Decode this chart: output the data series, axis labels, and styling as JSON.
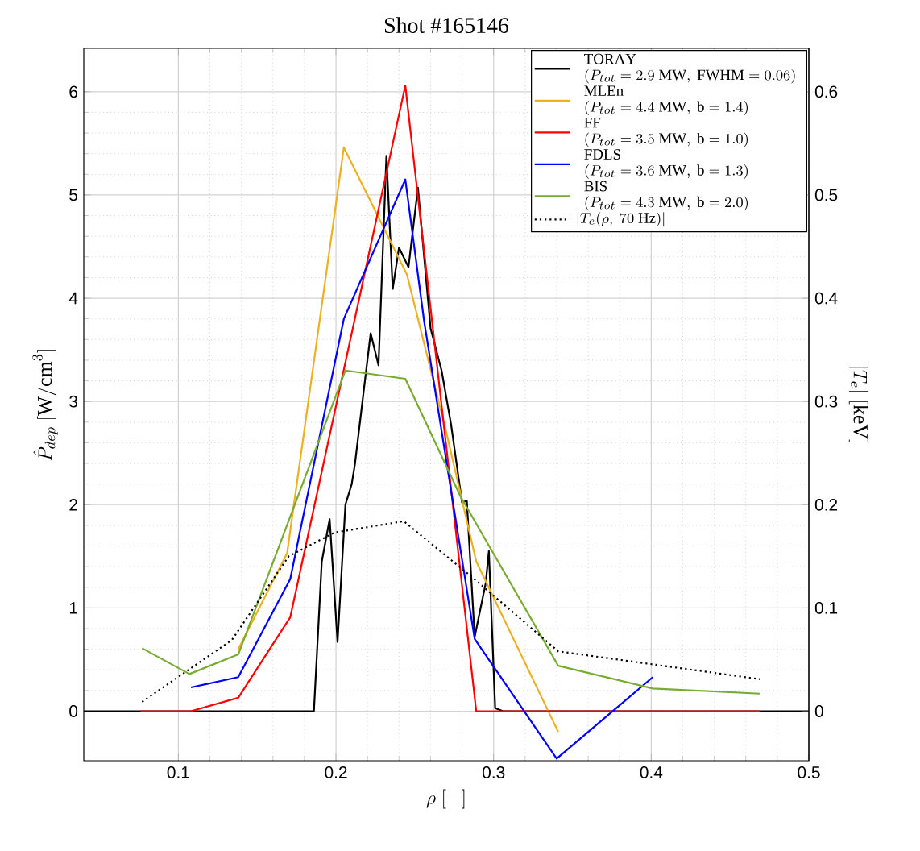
{
  "chart_data": {
    "type": "line",
    "title": "Shot #165146",
    "xlabel": "\\rho\\ [-]",
    "ylabel": "\\hat{P}_{dep}\\ [\\mathrm{W/cm}^3]",
    "y2label": "|T_e|\\ [\\mathrm{keV}]",
    "xlim": [
      0.04,
      0.5
    ],
    "ylim": [
      -0.48,
      6.42
    ],
    "y2lim": [
      -0.048,
      0.642
    ],
    "xticks": [
      0.1,
      0.2,
      0.3,
      0.4,
      0.5
    ],
    "yticks": [
      0,
      1,
      2,
      3,
      4,
      5,
      6
    ],
    "y2ticks": [
      0,
      0.1,
      0.2,
      0.3,
      0.4,
      0.5,
      0.6
    ],
    "grid": true,
    "legend": "top right",
    "marker": "none",
    "series": [
      {
        "name": "\\begin{array}{l}\\mathrm{TORAY}\\\\(P_{tot}=2.9\\ \\mathrm{MW},\\ \\mathrm{FWHM}=0.06)\\end{array}",
        "color": "#000000",
        "x": [
          0.04,
          0.186,
          0.191,
          0.196,
          0.201,
          0.206,
          0.21,
          0.212,
          0.222,
          0.227,
          0.232,
          0.236,
          0.24,
          0.246,
          0.252,
          0.26,
          0.267,
          0.273,
          0.28,
          0.283,
          0.288,
          0.295,
          0.297,
          0.301,
          0.306,
          0.5
        ],
        "values": [
          0,
          0,
          1.45,
          1.86,
          0.67,
          2.0,
          2.2,
          2.39,
          3.66,
          3.35,
          5.38,
          4.09,
          4.49,
          4.3,
          5.07,
          3.71,
          3.3,
          2.78,
          2.02,
          2.04,
          0.72,
          1.24,
          1.55,
          0.03,
          0,
          0
        ]
      },
      {
        "name": "\\begin{array}{l}\\mathrm{MLEn}\\\\(P_{tot}=4.4\\ \\mathrm{MW},\\ \\mathrm{b}=1.4)\\end{array}",
        "color": "#edb120",
        "x": [
          0.138,
          0.169,
          0.205,
          0.245,
          0.27,
          0.289,
          0.341
        ],
        "values": [
          0.6,
          1.53,
          5.46,
          4.23,
          2.7,
          1.45,
          -0.2
        ]
      },
      {
        "name": "\\begin{array}{l}\\mathrm{FF}\\\\(P_{tot}=3.5\\ \\mathrm{MW},\\ \\mathrm{b}=1.0)\\end{array}",
        "color": "#ff0000",
        "x": [
          0.076,
          0.108,
          0.138,
          0.171,
          0.244,
          0.289,
          0.469
        ],
        "values": [
          0,
          0,
          0.13,
          0.91,
          6.06,
          0,
          0
        ]
      },
      {
        "name": "\\begin{array}{l}\\mathrm{FDLS}\\\\(P_{tot}=3.6\\ \\mathrm{MW},\\ \\mathrm{b}=1.3)\\end{array}",
        "color": "#0000ff",
        "x": [
          0.108,
          0.138,
          0.171,
          0.205,
          0.244,
          0.256,
          0.288,
          0.34,
          0.401
        ],
        "values": [
          0.23,
          0.33,
          1.28,
          3.8,
          5.15,
          3.77,
          0.7,
          -0.46,
          0.33
        ]
      },
      {
        "name": "\\begin{array}{l}\\mathrm{BIS}\\\\(P_{tot}=4.3\\ \\mathrm{MW},\\ \\mathrm{b}=2.0)\\end{array}",
        "color": "#77ac30",
        "x": [
          0.077,
          0.107,
          0.138,
          0.206,
          0.244,
          0.279,
          0.341,
          0.401,
          0.469
        ],
        "values": [
          0.61,
          0.36,
          0.55,
          3.3,
          3.22,
          2.08,
          0.44,
          0.22,
          0.17
        ]
      },
      {
        "name": "|T_e(\\rho,\\ 70\\ \\mathrm{Hz})|",
        "color": "#000000",
        "line_style": "dotted",
        "axis": "y2",
        "x": [
          0.077,
          0.134,
          0.17,
          0.199,
          0.243,
          0.287,
          0.341,
          0.469
        ],
        "values": [
          0.009,
          0.069,
          0.15,
          0.173,
          0.184,
          0.129,
          0.058,
          0.031
        ]
      }
    ]
  }
}
